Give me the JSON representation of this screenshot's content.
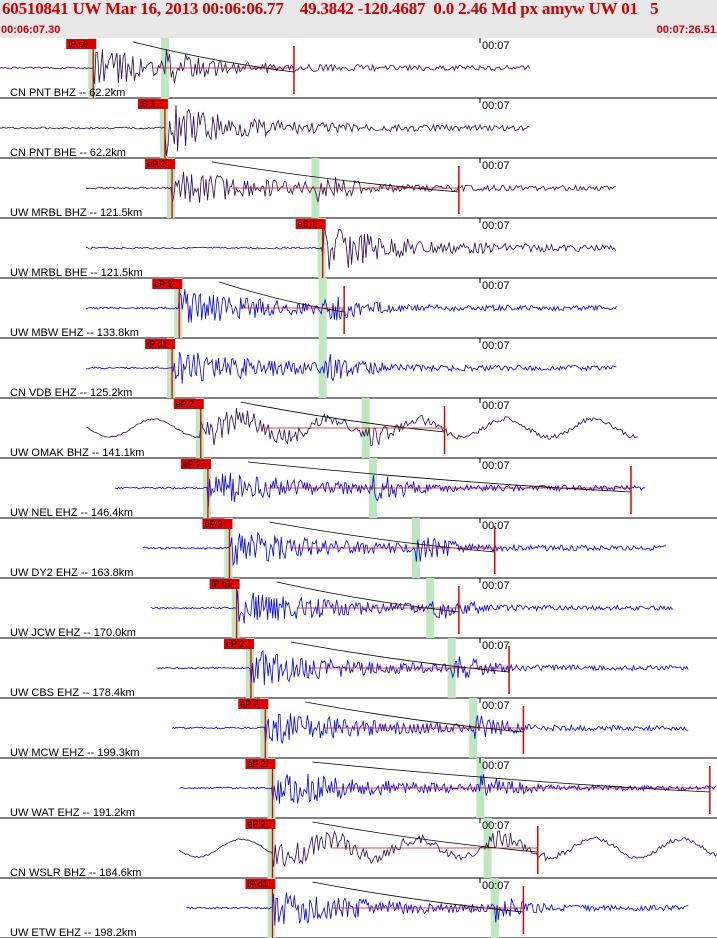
{
  "header": {
    "title": "60510841 UW Mar 16, 2013 00:06:06.77    49.3842 -120.4687  0.0 2.46 Md px amyw UW 01   5",
    "time_start": "00:06:07.30",
    "time_end": "00:07:26.51"
  },
  "tick_label": "00:07",
  "colors": {
    "bg": "#ffffff",
    "header_bg": "#e8e8e8",
    "header_text": "#cc0000",
    "trace_bh": "#2a0a55",
    "trace_eh": "#0000ee",
    "pick": "#dd0000",
    "window": "#bfe6bf"
  },
  "traces": [
    {
      "label": "CN PNT BHZ -- 62.2km",
      "pick": "iP c0",
      "kind": "BH",
      "start": 0.0,
      "end": 0.74,
      "pick_t": 0.13,
      "s_t": 0.23,
      "end_pick": 0.41,
      "decay": true
    },
    {
      "label": "CN PNT BHE -- 62.2km",
      "pick": "iS 1",
      "kind": "BH",
      "start": 0.0,
      "end": 0.74,
      "pick_t": 0.23,
      "s_t": 0.23,
      "end_pick": null,
      "decay": false
    },
    {
      "label": "UW MRBL BHZ -- 121.5km",
      "pick": "eP 2",
      "kind": "BH",
      "start": 0.12,
      "end": 0.86,
      "pick_t": 0.24,
      "s_t": 0.44,
      "end_pick": 0.64,
      "decay": true
    },
    {
      "label": "UW MRBL BHE -- 121.5km",
      "pick": "eS 1",
      "kind": "BH",
      "start": 0.12,
      "end": 0.86,
      "pick_t": 0.45,
      "s_t": 0.45,
      "end_pick": null,
      "decay": false
    },
    {
      "label": "UW MBW EHZ -- 133.8km",
      "pick": "eP 2",
      "kind": "EH",
      "start": 0.12,
      "end": 0.86,
      "pick_t": 0.25,
      "s_t": 0.45,
      "end_pick": 0.48,
      "decay": true
    },
    {
      "label": "CN VDB EHZ -- 125.2km",
      "pick": "iP d1",
      "kind": "EH",
      "start": 0.12,
      "end": 0.86,
      "pick_t": 0.24,
      "s_t": 0.45,
      "end_pick": null,
      "decay": false
    },
    {
      "label": "UW OMAK BHZ -- 141.1km",
      "pick": "eP 2",
      "kind": "BH",
      "start": 0.12,
      "end": 0.89,
      "pick_t": 0.28,
      "s_t": 0.51,
      "end_pick": 0.62,
      "decay": true
    },
    {
      "label": "UW NEL EHZ -- 146.4km",
      "pick": "eP 2",
      "kind": "EH",
      "start": 0.16,
      "end": 0.9,
      "pick_t": 0.29,
      "s_t": 0.52,
      "end_pick": 0.88,
      "decay": true
    },
    {
      "label": "UW DY2 EHZ -- 163.8km",
      "pick": "eP 2",
      "kind": "EH",
      "start": 0.2,
      "end": 0.93,
      "pick_t": 0.32,
      "s_t": 0.58,
      "end_pick": 0.69,
      "decay": true
    },
    {
      "label": "UW JCW EHZ -- 170.0km",
      "pick": "iP c1",
      "kind": "EH",
      "start": 0.21,
      "end": 0.94,
      "pick_t": 0.33,
      "s_t": 0.6,
      "end_pick": 0.64,
      "decay": true
    },
    {
      "label": "UW CBS EHZ -- 178.4km",
      "pick": "eP 2",
      "kind": "EH",
      "start": 0.22,
      "end": 0.96,
      "pick_t": 0.35,
      "s_t": 0.63,
      "end_pick": 0.71,
      "decay": true
    },
    {
      "label": "UW MCW EHZ -- 199.3km",
      "pick": "eP 2",
      "kind": "EH",
      "start": 0.24,
      "end": 0.96,
      "pick_t": 0.37,
      "s_t": 0.66,
      "end_pick": 0.73,
      "decay": true
    },
    {
      "label": "UW WAT EHZ -- 191.2km",
      "pick": "eP 2",
      "kind": "EH",
      "start": 0.25,
      "end": 1.0,
      "pick_t": 0.38,
      "s_t": 0.67,
      "end_pick": 0.99,
      "decay": true
    },
    {
      "label": "CN WSLR BHZ -- 184.6km",
      "pick": "eP 2",
      "kind": "BH",
      "start": 0.25,
      "end": 1.0,
      "pick_t": 0.38,
      "s_t": 0.68,
      "end_pick": 0.75,
      "decay": true
    },
    {
      "label": "UW ETW EHZ -- 198.2km",
      "pick": "iP d1",
      "kind": "EH",
      "start": 0.26,
      "end": 0.96,
      "pick_t": 0.38,
      "s_t": 0.69,
      "end_pick": 0.73,
      "decay": true
    }
  ]
}
